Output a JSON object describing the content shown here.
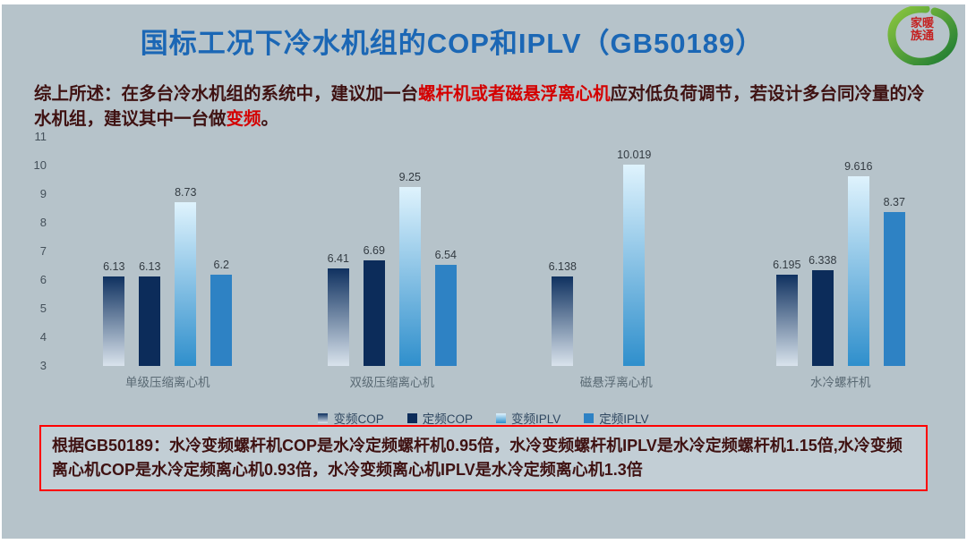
{
  "slide": {
    "title": "国标工况下冷水机组的COP和IPLV（GB50189）"
  },
  "logo": {
    "line1": "家暖",
    "line2": "族通"
  },
  "intro": {
    "prefix": "综上所述：在多台冷水机组的系统中，建议加一台",
    "highlight1": "螺杆机或者磁悬浮离心机",
    "middle": "应对低负荷调节，若设计多台同冷量的冷水机组，建议其中一台做",
    "highlight2": "变频",
    "suffix": "。"
  },
  "chart_data": {
    "type": "bar",
    "title": "",
    "categories": [
      "单级压缩离心机",
      "双级压缩离心机",
      "磁悬浮离心机",
      "水冷螺杆机"
    ],
    "series": [
      {
        "name": "变频COP",
        "values": [
          6.13,
          6.41,
          6.138,
          6.195
        ],
        "fill_from": "#0f3160",
        "fill_to": "#d9e3ec"
      },
      {
        "name": "定频COP",
        "values": [
          6.13,
          6.69,
          null,
          6.338
        ],
        "fill_from": "#0c2c5a",
        "fill_to": "#0c2c5a"
      },
      {
        "name": "变频IPLV",
        "values": [
          8.73,
          9.25,
          10.019,
          9.616
        ],
        "fill_from": "#dff3fd",
        "fill_to": "#2f8fcc"
      },
      {
        "name": "定频IPLV",
        "values": [
          6.2,
          6.54,
          null,
          8.37
        ],
        "fill_from": "#2e82c4",
        "fill_to": "#2e82c4"
      }
    ],
    "ylim": [
      3,
      11
    ],
    "yticks": [
      3,
      4,
      5,
      6,
      7,
      8,
      9,
      10,
      11
    ],
    "grid": false,
    "legend_position": "bottom"
  },
  "footer": {
    "text": "根据GB50189：水冷变频螺杆机COP是水冷定频螺杆机0.95倍，水冷变频螺杆机IPLV是水冷定频螺杆机1.15倍,水冷变频离心机COP是水冷定频离心机0.93倍，水冷变频离心机IPLV是水冷定频离心机1.3倍"
  },
  "colors": {
    "slide_background": "#b6c3ca",
    "title_blue": "#1b67b5",
    "text_dark_red": "#3f1212",
    "highlight_red": "#d40000",
    "footer_border_red": "#ff0000"
  }
}
